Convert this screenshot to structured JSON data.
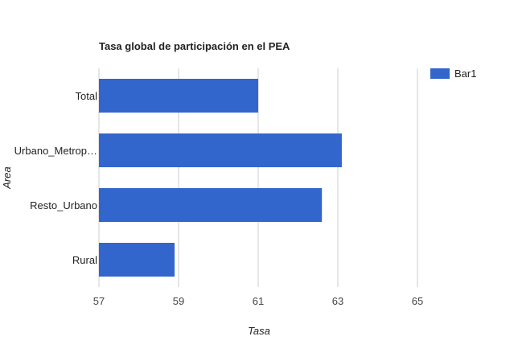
{
  "chart_data": {
    "type": "bar",
    "orientation": "horizontal",
    "title": "Tasa global de participación en el PEA",
    "xlabel": "Tasa",
    "ylabel": "Area",
    "categories": [
      "Total",
      "Urbano_Metrop…",
      "Resto_Urbano",
      "Rural"
    ],
    "series": [
      {
        "name": "Bar1",
        "values": [
          61.0,
          63.1,
          62.6,
          58.9
        ]
      }
    ],
    "xlim": [
      57,
      65
    ],
    "xticks": [
      "57",
      "59",
      "61",
      "63",
      "65"
    ],
    "grid": true,
    "legend": "top-right",
    "colors": {
      "bar": "#3366cc",
      "grid": "#cccccc",
      "text": "#222222",
      "axis_text": "#444444"
    }
  }
}
